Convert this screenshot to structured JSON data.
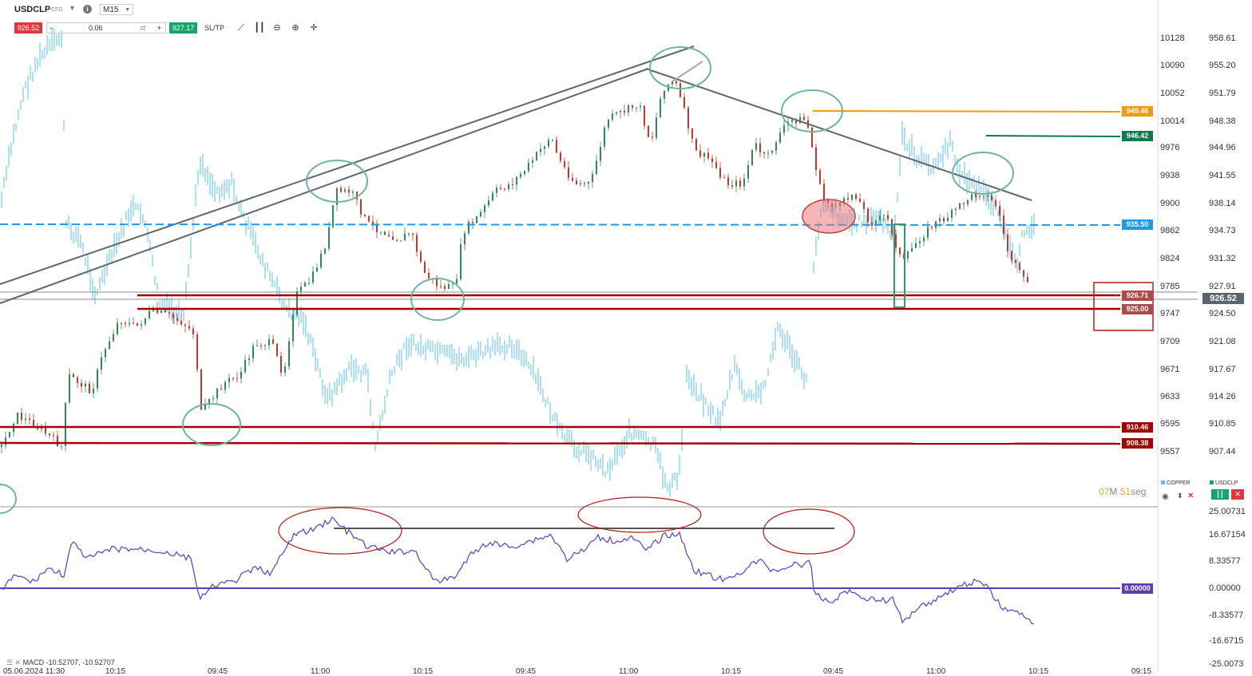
{
  "toolbar": {
    "symbol": "USDCLP",
    "instrument_type": "CFD",
    "timeframe": "M15",
    "sell_price": "926.52",
    "quantity": "0.06",
    "minus": "−",
    "plus": "+",
    "buy_price": "927.17",
    "sltp_label": "SL/TP",
    "icons": [
      "trendline-icon",
      "candlestick-icon",
      "zoom-out-icon",
      "zoom-in-icon",
      "crosshair-icon"
    ]
  },
  "price_axis": {
    "left_labels": [
      "10128",
      "10090",
      "10052",
      "10014",
      "9976",
      "9938",
      "9900",
      "9862",
      "9824",
      "9785",
      "9747",
      "9709",
      "9671",
      "9633",
      "9595",
      "9557"
    ],
    "right_labels": [
      "958.61",
      "955.20",
      "951.79",
      "948.38",
      "944.96",
      "941.55",
      "938.14",
      "934.73",
      "931.32",
      "927.91",
      "924.50",
      "921.08",
      "917.67",
      "914.26",
      "910.85",
      "907.44"
    ]
  },
  "price_tags": [
    {
      "value": "949.46",
      "color": "#f29a12"
    },
    {
      "value": "946.42",
      "color": "#0e7a4f"
    },
    {
      "value": "935.50",
      "color": "#1e9be8"
    },
    {
      "value": "926.71",
      "color": "#b04a4a"
    },
    {
      "value": "925.00",
      "color": "#b04a4a"
    },
    {
      "value": "910.46",
      "color": "#a30000"
    },
    {
      "value": "908.38",
      "color": "#a30000"
    }
  ],
  "current_price": {
    "value": "926.52",
    "color": "#5b6470"
  },
  "legend": {
    "copper": "COPPER",
    "usdclp": "USDCLP"
  },
  "timer": {
    "minutes": "07",
    "m": "M",
    "seconds": "51",
    "seg": "seg"
  },
  "macd": {
    "label": "MACD -10.52707, -10.52707",
    "axis_labels": [
      "25.00731",
      "16.67154",
      "8.33577",
      "0.00000",
      "-8.33577",
      "-16.6715",
      "-25.0073"
    ],
    "zero_tag": "0.00000"
  },
  "time_axis": [
    "05.06.2024 11:30",
    "10:15",
    "09:45",
    "11:00",
    "10:15",
    "09:45",
    "11:00",
    "10:15",
    "09:45",
    "11:00",
    "10:15",
    "09:15"
  ],
  "colors": {
    "copper": "#5bc0ea",
    "bull": "#2e8b57",
    "bear": "#c0392b",
    "support": "#a30000",
    "trend": "#5f6770",
    "macd": "#5a4fc8"
  }
}
